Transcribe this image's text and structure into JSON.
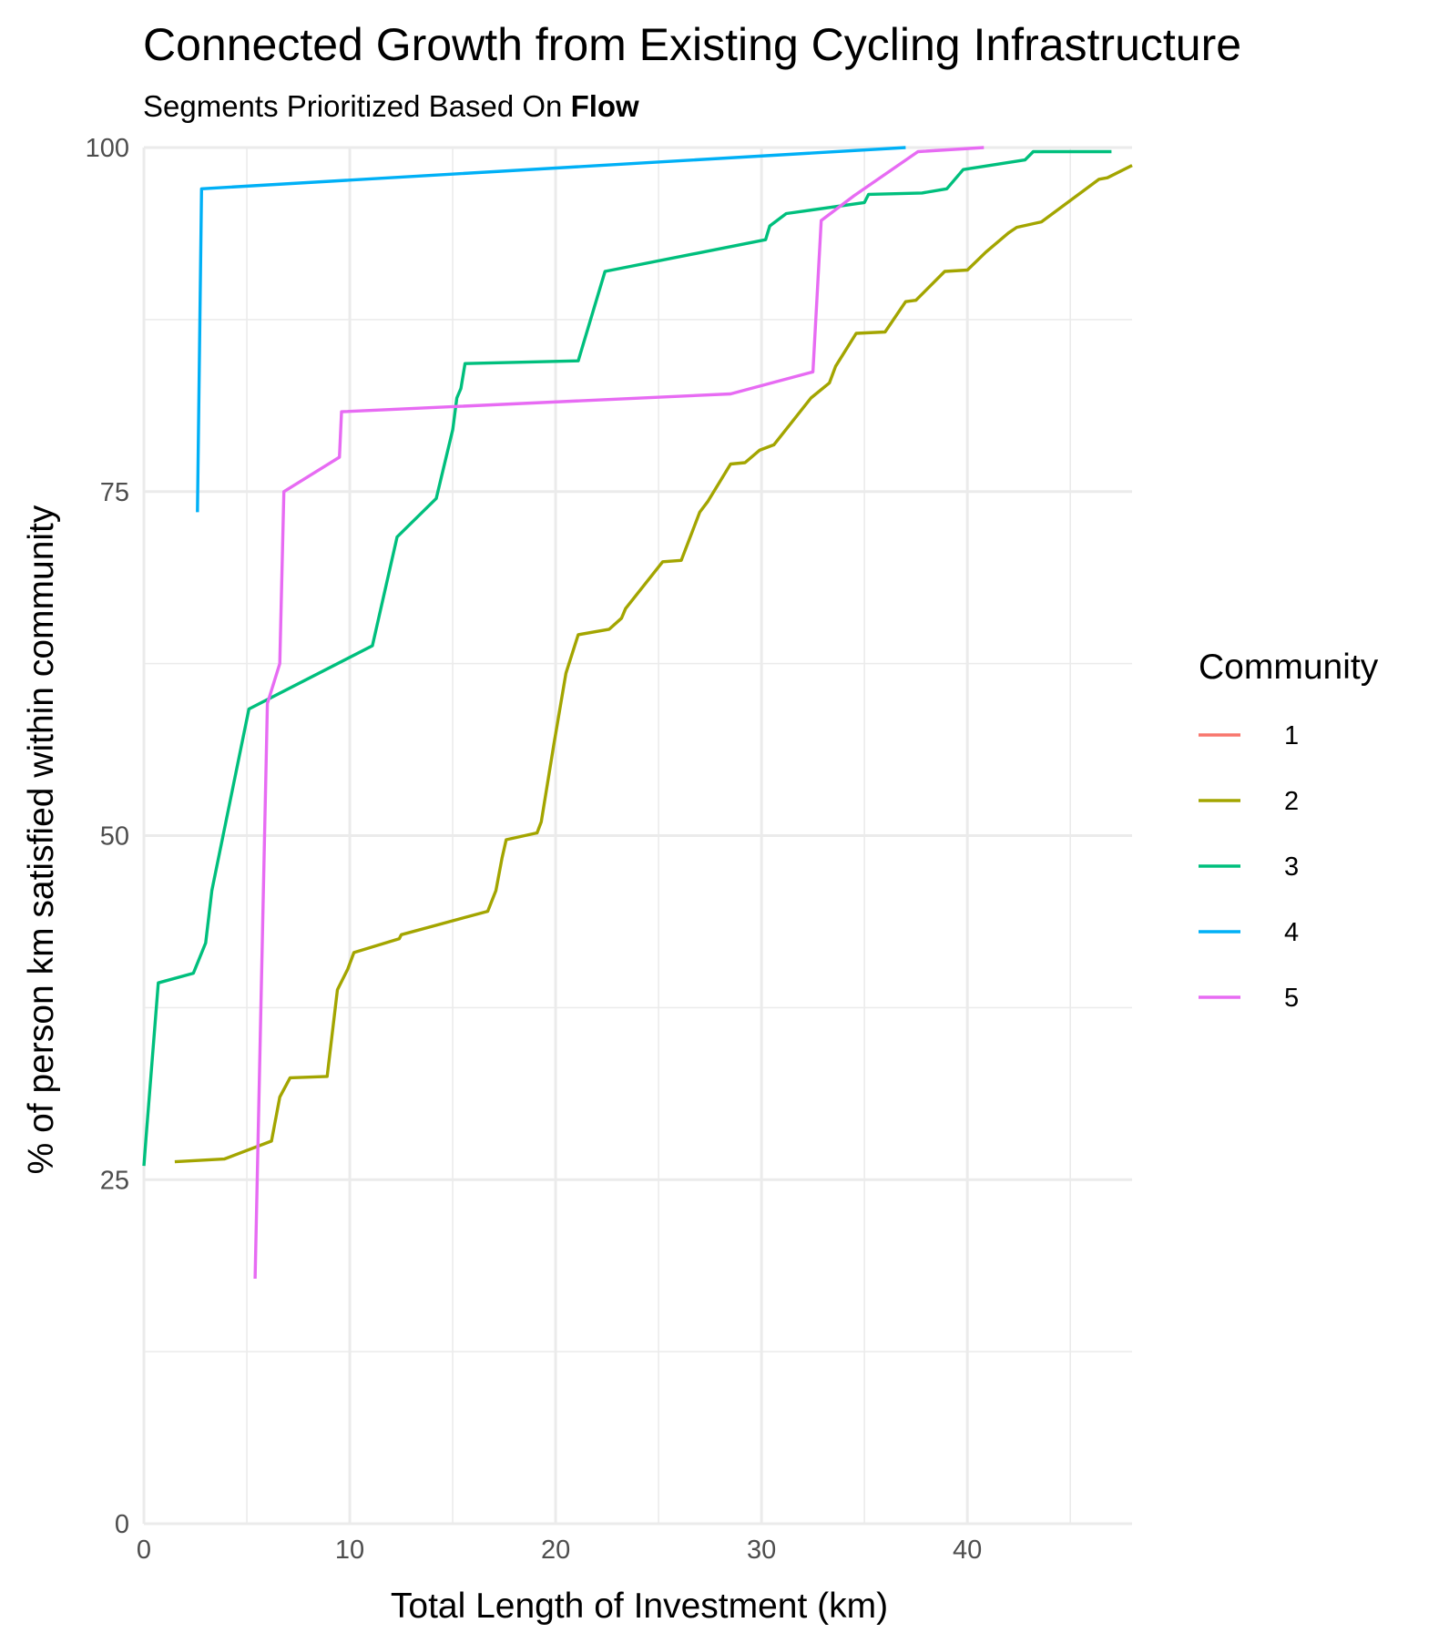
{
  "chart_data": {
    "type": "line",
    "title": "Connected Growth from Existing Cycling Infrastructure",
    "subtitle": {
      "prefix": "Segments Prioritized Based On ",
      "bold": "Flow"
    },
    "xlabel": "Total Length of Investment (km)",
    "ylabel": "% of person km satisfied within community",
    "xlim": [
      0,
      48
    ],
    "ylim": [
      0,
      100
    ],
    "x_ticks": [
      0,
      10,
      20,
      30,
      40
    ],
    "y_ticks": [
      0,
      25,
      50,
      75,
      100
    ],
    "x_minor_ticks": [
      5,
      15,
      25,
      35,
      45
    ],
    "y_minor_ticks": [
      12.5,
      37.5,
      62.5,
      87.5
    ],
    "grid": true,
    "legend": {
      "title": "Community",
      "position": "right"
    },
    "series": [
      {
        "name": "1",
        "color": "#F8766D",
        "points": []
      },
      {
        "name": "2",
        "color": "#A3A500",
        "points": [
          [
            1.5,
            26.3
          ],
          [
            3.9,
            26.5
          ],
          [
            6.2,
            27.8
          ],
          [
            6.6,
            31.0
          ],
          [
            7.1,
            32.4
          ],
          [
            8.9,
            32.5
          ],
          [
            9.4,
            38.8
          ],
          [
            9.9,
            40.3
          ],
          [
            10.2,
            41.5
          ],
          [
            12.4,
            42.5
          ],
          [
            12.5,
            42.8
          ],
          [
            16.7,
            44.5
          ],
          [
            17.1,
            46.0
          ],
          [
            17.4,
            48.4
          ],
          [
            17.6,
            49.7
          ],
          [
            19.1,
            50.2
          ],
          [
            19.3,
            51.0
          ],
          [
            19.9,
            56.5
          ],
          [
            20.5,
            61.8
          ],
          [
            21.1,
            64.6
          ],
          [
            22.6,
            65.0
          ],
          [
            23.2,
            65.8
          ],
          [
            23.4,
            66.5
          ],
          [
            25.2,
            69.9
          ],
          [
            26.1,
            70.0
          ],
          [
            27.0,
            73.5
          ],
          [
            27.4,
            74.3
          ],
          [
            28.5,
            77.0
          ],
          [
            29.2,
            77.1
          ],
          [
            29.9,
            78.0
          ],
          [
            30.6,
            78.4
          ],
          [
            32.4,
            81.8
          ],
          [
            33.3,
            82.9
          ],
          [
            33.6,
            84.1
          ],
          [
            34.6,
            86.5
          ],
          [
            36.0,
            86.6
          ],
          [
            37.0,
            88.8
          ],
          [
            37.5,
            88.9
          ],
          [
            38.9,
            91.0
          ],
          [
            40.0,
            91.1
          ],
          [
            40.9,
            92.4
          ],
          [
            42.0,
            93.8
          ],
          [
            42.4,
            94.2
          ],
          [
            43.6,
            94.6
          ],
          [
            46.4,
            97.7
          ],
          [
            46.8,
            97.8
          ],
          [
            48.0,
            98.7
          ]
        ]
      },
      {
        "name": "3",
        "color": "#00BF7D",
        "points": [
          [
            0.0,
            26.0
          ],
          [
            0.1,
            28.0
          ],
          [
            0.7,
            39.3
          ],
          [
            2.4,
            40.0
          ],
          [
            3.0,
            42.2
          ],
          [
            3.3,
            46.0
          ],
          [
            5.1,
            59.2
          ],
          [
            11.1,
            63.8
          ],
          [
            12.3,
            71.7
          ],
          [
            14.2,
            74.5
          ],
          [
            15.0,
            79.5
          ],
          [
            15.2,
            81.8
          ],
          [
            15.4,
            82.5
          ],
          [
            15.6,
            84.3
          ],
          [
            21.1,
            84.5
          ],
          [
            22.4,
            91.0
          ],
          [
            30.2,
            93.3
          ],
          [
            30.4,
            94.3
          ],
          [
            31.2,
            95.2
          ],
          [
            35.0,
            96.0
          ],
          [
            35.2,
            96.6
          ],
          [
            37.8,
            96.7
          ],
          [
            39.0,
            97.0
          ],
          [
            39.8,
            98.4
          ],
          [
            42.8,
            99.1
          ],
          [
            43.2,
            99.7
          ],
          [
            47.0,
            99.7
          ]
        ]
      },
      {
        "name": "4",
        "color": "#00B0F6",
        "points": [
          [
            2.6,
            73.5
          ],
          [
            2.8,
            97.0
          ],
          [
            37.0,
            100.0
          ]
        ]
      },
      {
        "name": "5",
        "color": "#E76BF3",
        "points": [
          [
            5.4,
            17.8
          ],
          [
            6.0,
            59.6
          ],
          [
            6.6,
            62.5
          ],
          [
            6.8,
            75.0
          ],
          [
            9.5,
            77.5
          ],
          [
            9.6,
            80.8
          ],
          [
            28.5,
            82.1
          ],
          [
            32.5,
            83.7
          ],
          [
            32.9,
            94.7
          ],
          [
            34.5,
            96.5
          ],
          [
            37.6,
            99.7
          ],
          [
            40.8,
            100.0
          ]
        ]
      }
    ]
  }
}
